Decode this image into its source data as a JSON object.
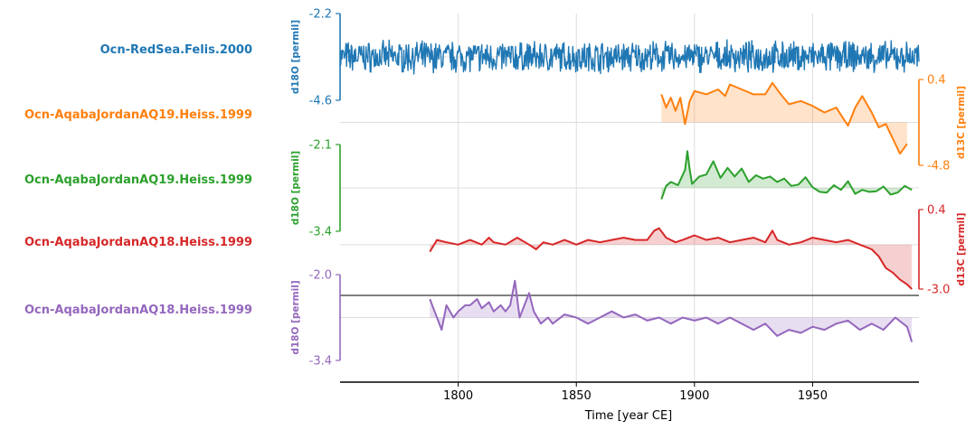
{
  "chart_data": {
    "type": "line",
    "layout": "stacked",
    "x_axis": {
      "label": "Time [year CE]",
      "range": [
        1750,
        1995
      ],
      "ticks": [
        1800,
        1850,
        1900,
        1950
      ],
      "tick_labels": [
        "1800",
        "1850",
        "1900",
        "1950"
      ]
    },
    "series": [
      {
        "name": "Ocn-RedSea.Felis.2000",
        "color": "#1f77b4",
        "ylabel": "d18O [permil]",
        "axis_side": "left",
        "ylim": [
          -4.6,
          -2.2
        ],
        "yticks": [
          "-2.2",
          "-4.6"
        ],
        "baseline": -3.4,
        "fill": false,
        "x_start": 1750,
        "x_end": 1995,
        "x_step": 0.25,
        "noise": 0.35
      },
      {
        "name": "Ocn-AqabaJordanAQ19.Heiss.1999",
        "color": "#ff7f0e",
        "ylabel": "d13C [permil]",
        "axis_side": "right",
        "ylim": [
          -4.8,
          0.4
        ],
        "yticks": [
          "0.4",
          "-4.8"
        ],
        "baseline": -2.2,
        "fill": true,
        "x": [
          1886,
          1888,
          1890,
          1892,
          1894,
          1896,
          1898,
          1900,
          1905,
          1910,
          1913,
          1915,
          1920,
          1925,
          1930,
          1933,
          1936,
          1940,
          1945,
          1950,
          1955,
          1960,
          1965,
          1968,
          1971,
          1975,
          1978,
          1981,
          1984,
          1987,
          1990
        ],
        "values": [
          -0.5,
          -1.3,
          -0.7,
          -1.5,
          -0.7,
          -2.3,
          -0.9,
          -0.3,
          -0.5,
          -0.2,
          -0.6,
          0.1,
          -0.2,
          -0.5,
          -0.5,
          0.2,
          -0.4,
          -1.1,
          -0.9,
          -1.2,
          -1.6,
          -1.3,
          -2.4,
          -1.3,
          -0.6,
          -1.6,
          -2.5,
          -2.3,
          -3.2,
          -4.1,
          -3.5
        ]
      },
      {
        "name": "Ocn-AqabaJordanAQ19.Heiss.1999",
        "color": "#2ca02c",
        "ylabel": "d18O [permil]",
        "axis_side": "left",
        "ylim": [
          -3.4,
          -2.1
        ],
        "yticks": [
          "-2.1",
          "-3.4"
        ],
        "baseline": -2.75,
        "fill": true,
        "x": [
          1886,
          1888,
          1890,
          1893,
          1896,
          1897,
          1898,
          1899,
          1902,
          1905,
          1908,
          1911,
          1914,
          1917,
          1920,
          1923,
          1926,
          1929,
          1932,
          1935,
          1938,
          1941,
          1944,
          1947,
          1950,
          1953,
          1956,
          1959,
          1962,
          1965,
          1968,
          1971,
          1974,
          1977,
          1980,
          1983,
          1986,
          1989,
          1992
        ],
        "values": [
          -2.92,
          -2.72,
          -2.66,
          -2.71,
          -2.48,
          -2.2,
          -2.48,
          -2.69,
          -2.58,
          -2.55,
          -2.35,
          -2.6,
          -2.45,
          -2.58,
          -2.46,
          -2.66,
          -2.56,
          -2.61,
          -2.58,
          -2.66,
          -2.61,
          -2.72,
          -2.7,
          -2.59,
          -2.74,
          -2.81,
          -2.82,
          -2.71,
          -2.78,
          -2.65,
          -2.84,
          -2.78,
          -2.81,
          -2.8,
          -2.73,
          -2.85,
          -2.82,
          -2.72,
          -2.78
        ]
      },
      {
        "name": "Ocn-AqabaJordanAQ18.Heiss.1999",
        "color": "#d62728",
        "ylabel": "d13C [permil]",
        "axis_side": "right",
        "ylim": [
          -3.0,
          0.4
        ],
        "yticks": [
          "0.4",
          "-3.0"
        ],
        "baseline": -1.1,
        "fill": true,
        "x": [
          1788,
          1791,
          1795,
          1800,
          1805,
          1810,
          1813,
          1815,
          1820,
          1825,
          1830,
          1833,
          1836,
          1840,
          1845,
          1850,
          1855,
          1860,
          1865,
          1870,
          1875,
          1880,
          1883,
          1885,
          1888,
          1892,
          1895,
          1900,
          1905,
          1910,
          1915,
          1920,
          1925,
          1930,
          1933,
          1935,
          1940,
          1945,
          1950,
          1955,
          1960,
          1965,
          1970,
          1975,
          1978,
          1981,
          1984,
          1987,
          1990,
          1992
        ],
        "values": [
          -1.4,
          -0.9,
          -1.0,
          -1.1,
          -0.9,
          -1.1,
          -0.8,
          -1.0,
          -1.1,
          -0.8,
          -1.1,
          -1.3,
          -1.0,
          -1.1,
          -0.9,
          -1.1,
          -0.9,
          -1.0,
          -0.9,
          -0.8,
          -0.9,
          -0.9,
          -0.5,
          -0.4,
          -0.8,
          -1.0,
          -0.9,
          -0.7,
          -0.9,
          -0.8,
          -1.0,
          -0.9,
          -0.8,
          -1.0,
          -0.5,
          -0.9,
          -1.1,
          -1.0,
          -0.8,
          -0.9,
          -1.0,
          -0.9,
          -1.1,
          -1.3,
          -1.6,
          -2.1,
          -2.3,
          -2.6,
          -2.8,
          -3.0
        ]
      },
      {
        "name": "Ocn-AqabaJordanAQ18.Heiss.1999",
        "color": "#9467bd",
        "ylabel": "d18O [permil]",
        "axis_side": "left",
        "ylim": [
          -3.4,
          -2.0
        ],
        "yticks": [
          "-2.0",
          "-3.4"
        ],
        "baseline": -2.7,
        "fill": true,
        "x": [
          1788,
          1790,
          1793,
          1795,
          1798,
          1800,
          1803,
          1805,
          1808,
          1810,
          1813,
          1815,
          1818,
          1820,
          1822,
          1824,
          1826,
          1828,
          1830,
          1832,
          1835,
          1838,
          1840,
          1845,
          1850,
          1855,
          1860,
          1865,
          1870,
          1875,
          1880,
          1885,
          1890,
          1895,
          1900,
          1905,
          1910,
          1915,
          1920,
          1925,
          1930,
          1935,
          1940,
          1945,
          1950,
          1955,
          1960,
          1965,
          1970,
          1975,
          1980,
          1985,
          1990,
          1992
        ],
        "values": [
          -2.4,
          -2.6,
          -2.9,
          -2.5,
          -2.7,
          -2.6,
          -2.5,
          -2.5,
          -2.4,
          -2.55,
          -2.45,
          -2.6,
          -2.5,
          -2.6,
          -2.5,
          -2.1,
          -2.7,
          -2.5,
          -2.3,
          -2.6,
          -2.8,
          -2.7,
          -2.8,
          -2.65,
          -2.7,
          -2.8,
          -2.7,
          -2.6,
          -2.7,
          -2.65,
          -2.75,
          -2.7,
          -2.8,
          -2.7,
          -2.75,
          -2.7,
          -2.8,
          -2.7,
          -2.8,
          -2.9,
          -2.8,
          -3.0,
          -2.9,
          -2.95,
          -2.85,
          -2.9,
          -2.8,
          -2.75,
          -2.9,
          -2.8,
          -2.9,
          -2.7,
          -2.85,
          -3.1
        ]
      }
    ]
  }
}
